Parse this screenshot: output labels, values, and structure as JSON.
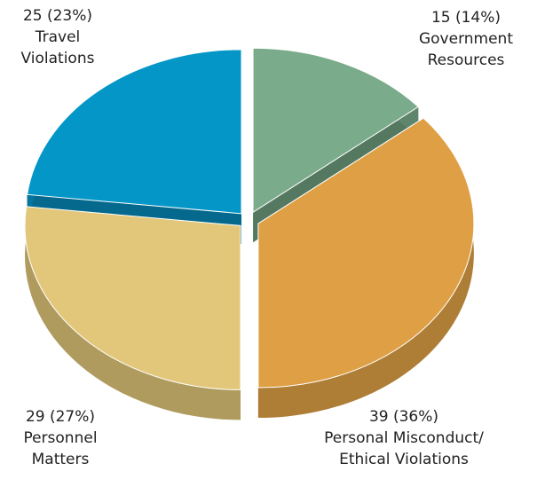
{
  "chart_data": {
    "type": "pie3d",
    "categories": [
      "Government Resources",
      "Personal Misconduct/ Ethical Violations",
      "Personnel Matters",
      "Travel Violations"
    ],
    "values": [
      15,
      39,
      29,
      25
    ],
    "value_labels": [
      "15 (14%)",
      "39 (36%)",
      "29 (27%)",
      "25 (23%)"
    ],
    "colors": [
      "#7aab8a",
      "#dfa045",
      "#e2c77a",
      "#0596c8"
    ]
  }
}
